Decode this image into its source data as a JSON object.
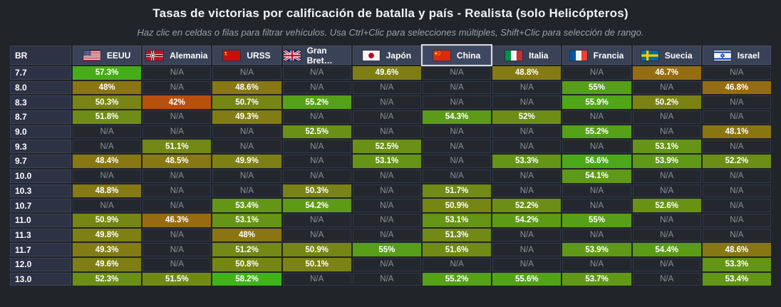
{
  "title": "Tasas de victorias por calificación de batalla y país - Realista (solo Helicópteros)",
  "subtitle": "Haz clic en celdas o filas para filtrar vehículos. Usa Ctrl+Clic para selecciones múltiples, Shift+Clic para selección de rango.",
  "table": {
    "br_header": "BR",
    "na_label": "N/A",
    "highlighted_country": "china",
    "countries": [
      {
        "id": "eeuu",
        "label": "EEUU",
        "flag_icon": "us-flag-icon"
      },
      {
        "id": "alemania",
        "label": "Alemania",
        "flag_icon": "germany-flag-icon"
      },
      {
        "id": "urss",
        "label": "URSS",
        "flag_icon": "ussr-flag-icon"
      },
      {
        "id": "gran_bretana",
        "label": "Gran Bret…",
        "flag_icon": "uk-flag-icon"
      },
      {
        "id": "japon",
        "label": "Japón",
        "flag_icon": "japan-flag-icon"
      },
      {
        "id": "china",
        "label": "China",
        "flag_icon": "china-flag-icon"
      },
      {
        "id": "italia",
        "label": "Italia",
        "flag_icon": "italy-flag-icon"
      },
      {
        "id": "francia",
        "label": "Francia",
        "flag_icon": "france-flag-icon"
      },
      {
        "id": "suecia",
        "label": "Suecia",
        "flag_icon": "sweden-flag-icon"
      },
      {
        "id": "israel",
        "label": "Israel",
        "flag_icon": "israel-flag-icon"
      }
    ],
    "rows": [
      {
        "br": "7.7",
        "values": [
          "57.3%",
          null,
          null,
          null,
          "49.6%",
          null,
          "48.8%",
          null,
          "46.7%",
          null
        ]
      },
      {
        "br": "8.0",
        "values": [
          "48%",
          null,
          "48.6%",
          null,
          null,
          null,
          null,
          "55%",
          null,
          "46.8%"
        ]
      },
      {
        "br": "8.3",
        "values": [
          "50.3%",
          "42%",
          "50.7%",
          "55.2%",
          null,
          null,
          null,
          "55.9%",
          "50.2%",
          null
        ]
      },
      {
        "br": "8.7",
        "values": [
          "51.8%",
          null,
          "49.3%",
          null,
          null,
          "54.3%",
          "52%",
          null,
          null,
          null
        ]
      },
      {
        "br": "9.0",
        "values": [
          null,
          null,
          null,
          "52.5%",
          null,
          null,
          null,
          "55.2%",
          null,
          "48.1%"
        ]
      },
      {
        "br": "9.3",
        "values": [
          null,
          "51.1%",
          null,
          null,
          "52.5%",
          null,
          null,
          null,
          "53.1%",
          null
        ]
      },
      {
        "br": "9.7",
        "values": [
          "48.4%",
          "48.5%",
          "49.9%",
          null,
          "53.1%",
          null,
          "53.3%",
          "56.6%",
          "53.9%",
          "52.2%"
        ]
      },
      {
        "br": "10.0",
        "values": [
          null,
          null,
          null,
          null,
          null,
          null,
          null,
          "54.1%",
          null,
          null
        ]
      },
      {
        "br": "10.3",
        "values": [
          "48.8%",
          null,
          null,
          "50.3%",
          null,
          "51.7%",
          null,
          null,
          null,
          null
        ]
      },
      {
        "br": "10.7",
        "values": [
          null,
          null,
          "53.4%",
          "54.2%",
          null,
          "50.9%",
          "52.2%",
          null,
          "52.6%",
          null
        ]
      },
      {
        "br": "11.0",
        "values": [
          "50.9%",
          "46.3%",
          "53.1%",
          null,
          null,
          "53.1%",
          "54.2%",
          "55%",
          null,
          null
        ]
      },
      {
        "br": "11.3",
        "values": [
          "49.8%",
          null,
          "48%",
          null,
          null,
          "51.3%",
          null,
          null,
          null,
          null
        ]
      },
      {
        "br": "11.7",
        "values": [
          "49.3%",
          null,
          "51.2%",
          "50.9%",
          "55%",
          "51.6%",
          null,
          "53.9%",
          "54.4%",
          "48.6%"
        ]
      },
      {
        "br": "12.0",
        "values": [
          "49.6%",
          null,
          "50.8%",
          "50.1%",
          null,
          null,
          null,
          null,
          null,
          "53.3%"
        ]
      },
      {
        "br": "13.0",
        "values": [
          "52.3%",
          "51.5%",
          "58.2%",
          null,
          null,
          "55.2%",
          "55.6%",
          "53.7%",
          null,
          "53.4%"
        ]
      }
    ]
  },
  "colors": {
    "page_bg": "#212429",
    "title_text": "#f2f3f5",
    "subtitle_text": "#9aa1ab",
    "header_cell_bg": "#3a4257",
    "header_cell_border": "#4a5268",
    "row_label_bg": "#2d3345",
    "row_label_border": "#3c4357",
    "na_cell_bg": "#24272e",
    "na_cell_border": "#31374a",
    "na_text": "#8b919b",
    "cell_text": "#ffffff",
    "highlight_border": "#d7dade",
    "scale_low": "#b8500f",
    "scale_high": "#3fb31a",
    "scale_min_value": 42,
    "scale_max_value": 58.2
  }
}
